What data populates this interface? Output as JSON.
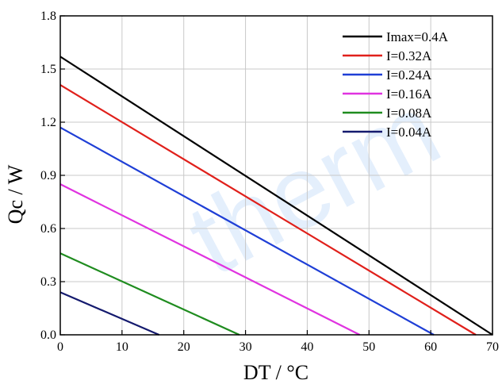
{
  "chart_data": {
    "type": "line",
    "xlabel": "DT / °C",
    "ylabel": "Qc / W",
    "xlim": [
      0,
      70
    ],
    "ylim": [
      0,
      1.8
    ],
    "x_ticks": [
      "0",
      "10",
      "20",
      "30",
      "40",
      "50",
      "60",
      "70"
    ],
    "y_ticks": [
      "0.0",
      "0.3",
      "0.6",
      "0.9",
      "1.2",
      "1.5",
      "1.8"
    ],
    "grid": true,
    "legend_position": "top-right",
    "series": [
      {
        "name": "Imax=0.4A",
        "color": "#000000",
        "points": [
          [
            0,
            1.57
          ],
          [
            70,
            0.0
          ]
        ]
      },
      {
        "name": "I=0.32A",
        "color": "#e0201b",
        "points": [
          [
            0,
            1.41
          ],
          [
            67.3,
            0.0
          ]
        ]
      },
      {
        "name": "I=0.24A",
        "color": "#1f3fd6",
        "points": [
          [
            0,
            1.17
          ],
          [
            60.5,
            0.0
          ]
        ]
      },
      {
        "name": "I=0.16A",
        "color": "#e033e0",
        "points": [
          [
            0,
            0.85
          ],
          [
            48.5,
            0.0
          ]
        ]
      },
      {
        "name": "I=0.08A",
        "color": "#1f8c1f",
        "points": [
          [
            0,
            0.46
          ],
          [
            29.0,
            0.0
          ]
        ]
      },
      {
        "name": "I=0.04A",
        "color": "#141a6e",
        "points": [
          [
            0,
            0.24
          ],
          [
            16.0,
            0.0
          ]
        ]
      }
    ]
  }
}
